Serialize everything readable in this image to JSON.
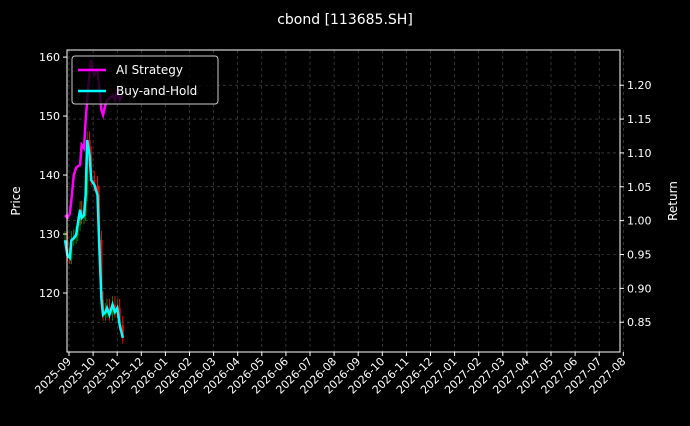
{
  "chart_data": {
    "type": "line",
    "title": "cbond [113685.SH]",
    "ylabel": "Price",
    "y2label": "Return",
    "ylim": [
      110,
      161.2
    ],
    "y2lim": [
      0.806,
      1.252
    ],
    "yticks": [
      120,
      130,
      140,
      150,
      160
    ],
    "y2ticks": [
      "0.85",
      "0.90",
      "0.95",
      "1.00",
      "1.05",
      "1.10",
      "1.15",
      "1.20"
    ],
    "xticks": [
      "2025-09",
      "2025-10",
      "2025-11",
      "2025-12",
      "2026-01",
      "2026-02",
      "2026-03",
      "2026-04",
      "2026-05",
      "2026-06",
      "2026-07",
      "2026-08",
      "2026-09",
      "2026-10",
      "2026-11",
      "2026-12",
      "2027-01",
      "2027-02",
      "2027-03",
      "2027-04",
      "2027-05",
      "2027-06",
      "2027-07",
      "2027-08"
    ],
    "grid": true,
    "legend_position": "top-left",
    "dates": [
      "2025-08-27",
      "2025-08-30",
      "2025-09-02",
      "2025-09-04",
      "2025-09-07",
      "2025-09-10",
      "2025-09-12",
      "2025-09-15",
      "2025-09-17",
      "2025-09-20",
      "2025-09-22",
      "2025-09-24",
      "2025-09-27",
      "2025-09-29",
      "2025-10-03",
      "2025-10-07",
      "2025-10-09",
      "2025-10-12",
      "2025-10-14",
      "2025-10-17",
      "2025-10-19",
      "2025-10-22",
      "2025-10-26",
      "2025-10-29",
      "2025-11-01",
      "2025-11-04",
      "2025-11-08"
    ],
    "price_close": [
      129.0,
      126.4,
      125.9,
      129.0,
      129.3,
      129.8,
      131.5,
      134.1,
      132.7,
      133.2,
      136.6,
      145.9,
      143.4,
      139.2,
      138.3,
      136.6,
      129.0,
      118.8,
      116.3,
      116.8,
      117.5,
      116.3,
      118.0,
      116.8,
      117.5,
      114.6,
      112.4
    ],
    "series": [
      {
        "name": "AI Strategy",
        "color": "#ff00ff",
        "values": [
          1.008,
          1.004,
          1.01,
          1.03,
          1.067,
          1.078,
          1.08,
          1.082,
          1.112,
          1.107,
          1.148,
          1.178,
          1.219,
          1.237,
          1.215,
          1.222,
          1.2,
          1.163,
          1.156,
          1.171,
          1.178,
          1.18,
          1.185,
          1.178,
          1.193,
          1.178,
          1.185
        ]
      },
      {
        "name": "Buy-and-Hold",
        "color": "#00ffff",
        "values": [
          0.971,
          0.949,
          0.945,
          0.971,
          0.974,
          0.979,
          0.994,
          1.016,
          1.004,
          1.008,
          1.038,
          1.119,
          1.097,
          1.06,
          1.053,
          1.038,
          0.971,
          0.883,
          0.861,
          0.865,
          0.871,
          0.861,
          0.876,
          0.865,
          0.871,
          0.846,
          0.827
        ]
      }
    ],
    "up_color": "#008000",
    "down_color": "#ff0000"
  }
}
